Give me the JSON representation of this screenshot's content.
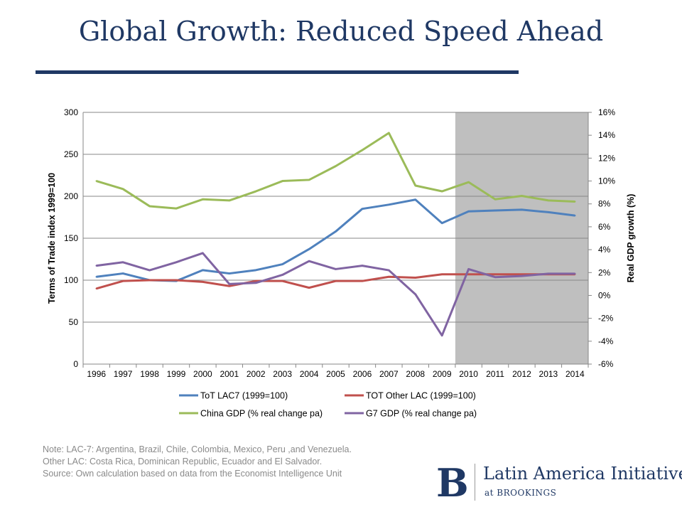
{
  "slide": {
    "title": "Global Growth: Reduced Speed Ahead",
    "notes": [
      "Note: LAC-7: Argentina, Brazil, Chile, Colombia, Mexico, Peru ,and Venezuela.",
      "Other LAC: Costa Rica, Dominican Republic, Ecuador and El Salvador.",
      "Source: Own calculation based on data from the Economist Intelligence Unit"
    ],
    "logo": {
      "name": "Latin America Initiative",
      "sub": "at BROOKINGS",
      "mark": "B"
    },
    "colors": {
      "title": "#1f3864",
      "shade": "#bfbfbf"
    }
  },
  "chart_data": {
    "type": "line",
    "ylabel": "Terms of Trade index 1999=100",
    "y2label": "Real GDP growth (%)",
    "categories": [
      "1996",
      "1997",
      "1998",
      "1999",
      "2000",
      "2001",
      "2002",
      "2003",
      "2004",
      "2005",
      "2006",
      "2007",
      "2008",
      "2009",
      "2010",
      "2011",
      "2012",
      "2013",
      "2014"
    ],
    "ylim": [
      0,
      300
    ],
    "yticks": [
      0,
      50,
      100,
      150,
      200,
      250,
      300
    ],
    "y2lim": [
      -6,
      16
    ],
    "y2ticks": [
      -6,
      -4,
      -2,
      0,
      2,
      4,
      6,
      8,
      10,
      12,
      14,
      16
    ],
    "y2_tick_format": "percent",
    "shaded_from": "2010",
    "shaded_to": "2014",
    "grid": "horizontal",
    "legend_position": "bottom",
    "series": [
      {
        "name": "ToT LAC7  (1999=100)",
        "axis": "left",
        "color": "#4f81bd",
        "values": [
          104,
          108,
          100,
          99,
          112,
          108,
          112,
          119,
          137,
          158,
          185,
          190,
          196,
          168,
          182,
          183,
          184,
          181,
          177
        ]
      },
      {
        "name": "TOT Other LAC (1999=100)",
        "axis": "left",
        "color": "#c0504d",
        "values": [
          90,
          99,
          100,
          100,
          98,
          93,
          99,
          99,
          91,
          99,
          99,
          104,
          103,
          107,
          107,
          107,
          107,
          107,
          107
        ]
      },
      {
        "name": "China GDP (% real change pa)",
        "axis": "right",
        "color": "#9bbb59",
        "values": [
          10.0,
          9.3,
          7.8,
          7.6,
          8.4,
          8.3,
          9.1,
          10.0,
          10.1,
          11.3,
          12.7,
          14.2,
          9.6,
          9.1,
          9.9,
          8.4,
          8.7,
          8.3,
          8.2
        ]
      },
      {
        "name": "G7 GDP (% real change pa)",
        "axis": "right",
        "color": "#8064a2",
        "values": [
          2.6,
          2.9,
          2.2,
          2.9,
          3.7,
          1.0,
          1.1,
          1.8,
          3.0,
          2.3,
          2.6,
          2.2,
          0.1,
          -3.5,
          2.3,
          1.6,
          1.7,
          1.9,
          1.9
        ]
      }
    ]
  }
}
